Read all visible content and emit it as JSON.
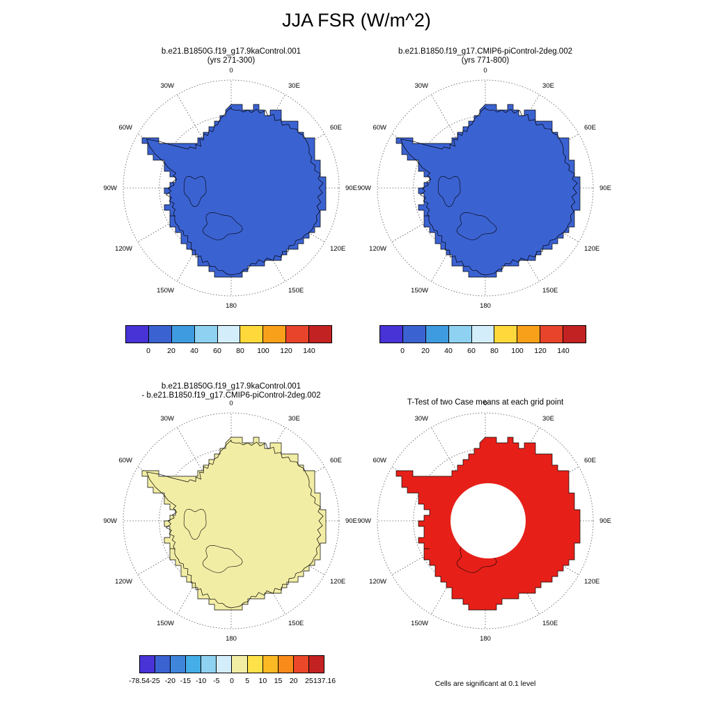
{
  "page_title": "JJA FSR (W/m^2)",
  "map": {
    "longitude_labels": [
      "0",
      "30E",
      "60E",
      "90E",
      "120E",
      "150E",
      "180",
      "150W",
      "120W",
      "90W",
      "60W",
      "30W"
    ]
  },
  "panels": [
    {
      "id": "case1",
      "title_lines": [
        "b.e21.B1850G.f19_g17.9kaControl.001",
        "(yrs 271-300)"
      ],
      "fill_color": "#3b62d1",
      "colorbar": "fsr"
    },
    {
      "id": "case2",
      "title_lines": [
        "b.e21.B1850.f19_g17.CMIP6-piControl-2deg.002",
        "(yrs 771-800)"
      ],
      "fill_color": "#3b62d1",
      "colorbar": "fsr"
    },
    {
      "id": "difference",
      "title_lines": [
        "b.e21.B1850G.f19_g17.9kaControl.001",
        "- b.e21.B1850.f19_g17.CMIP6-piControl-2deg.002"
      ],
      "fill_color": "#f2eda4",
      "colorbar": "diff"
    },
    {
      "id": "ttest",
      "title_lines": [
        "T-Test of two Case means at each grid point"
      ],
      "fill_color": "#e62019",
      "hole": true,
      "note": "Cells are significant at 0.1 level"
    }
  ],
  "colorbars": {
    "fsr": {
      "colors": [
        "#4733d6",
        "#3b62d1",
        "#3f9be0",
        "#8ed1f0",
        "#d3eefa",
        "#ffd83c",
        "#f9a01b",
        "#e8442c",
        "#c32222"
      ],
      "labels": [
        "0",
        "20",
        "40",
        "60",
        "80",
        "100",
        "120",
        "140"
      ]
    },
    "diff": {
      "colors": [
        "#4733d6",
        "#3b62d1",
        "#3f86db",
        "#45aee8",
        "#8ed1f0",
        "#d3eefa",
        "#f2eda4",
        "#ffe14a",
        "#fdb924",
        "#f98b1b",
        "#ea4828",
        "#c32222"
      ],
      "labels": [
        "-78.54",
        "-25",
        "-20",
        "-15",
        "-10",
        "-5",
        "0",
        "5",
        "10",
        "15",
        "20",
        "25",
        "137.16"
      ]
    }
  },
  "chart_data": [
    {
      "type": "map",
      "projection": "south polar stereographic",
      "region": "Antarctica, poleward of ~60S",
      "title": "b.e21.B1850G.f19_g17.9kaControl.001 (yrs 271-300)",
      "variable": "JJA FSR (W/m^2)",
      "contour_levels": [
        0,
        20,
        40,
        60,
        80,
        100,
        120,
        140
      ],
      "depicted": "Antarctic continent uniformly filled in the 0-20 W/m^2 bin (royal blue)",
      "legend_position": "below map"
    },
    {
      "type": "map",
      "projection": "south polar stereographic",
      "region": "Antarctica, poleward of ~60S",
      "title": "b.e21.B1850.f19_g17.CMIP6-piControl-2deg.002 (yrs 771-800)",
      "variable": "JJA FSR (W/m^2)",
      "contour_levels": [
        0,
        20,
        40,
        60,
        80,
        100,
        120,
        140
      ],
      "depicted": "Antarctic continent uniformly filled in the 0-20 W/m^2 bin (royal blue)",
      "legend_position": "below map"
    },
    {
      "type": "map",
      "projection": "south polar stereographic",
      "region": "Antarctica, poleward of ~60S",
      "title": "b.e21.B1850G.f19_g17.9kaControl.001 - b.e21.B1850.f19_g17.CMIP6-piControl-2deg.002",
      "variable": "JJA FSR difference (W/m^2)",
      "contour_levels": [
        -25,
        -20,
        -15,
        -10,
        -5,
        0,
        5,
        10,
        15,
        20,
        25
      ],
      "min": -78.54,
      "max": 137.16,
      "depicted": "Difference near 0 to +5 W/m^2 over Antarctica (pale yellow fill)",
      "legend_position": "below map"
    },
    {
      "type": "map",
      "projection": "south polar stereographic",
      "region": "Antarctica, poleward of ~60S",
      "title": "T-Test of two Case means at each grid point",
      "depicted": "Red shading where cells are significant at the 0.1 level, covering Antarctica except a roughly circular unshaded region around the pole",
      "annotation": "Cells are significant at 0.1 level"
    }
  ]
}
